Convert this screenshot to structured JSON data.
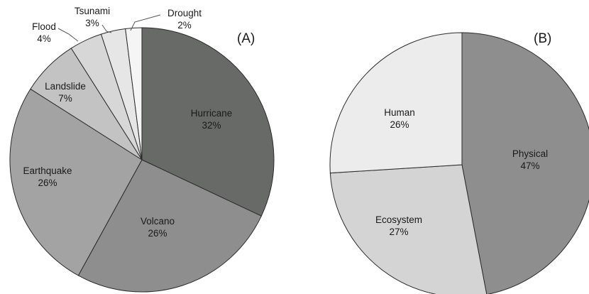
{
  "chart_data": [
    {
      "type": "pie",
      "panel_label": "(A)",
      "slices": [
        {
          "name": "Hurricane",
          "value": 32,
          "label": "32%",
          "color": "#676a67"
        },
        {
          "name": "Volcano",
          "value": 26,
          "label": "26%",
          "color": "#8e8e8e"
        },
        {
          "name": "Earthquake",
          "value": 26,
          "label": "26%",
          "color": "#a3a3a3"
        },
        {
          "name": "Landslide",
          "value": 7,
          "label": "7%",
          "color": "#c3c3c3"
        },
        {
          "name": "Flood",
          "value": 4,
          "label": "4%",
          "color": "#d7d7d7"
        },
        {
          "name": "Tsunami",
          "value": 3,
          "label": "3%",
          "color": "#e6e6e6"
        },
        {
          "name": "Drought",
          "value": 2,
          "label": "2%",
          "color": "#f5f5f5"
        }
      ]
    },
    {
      "type": "pie",
      "panel_label": "(B)",
      "slices": [
        {
          "name": "Physical",
          "value": 47,
          "label": "47%",
          "color": "#8e8e8e"
        },
        {
          "name": "Ecosystem",
          "value": 27,
          "label": "27%",
          "color": "#d4d4d4"
        },
        {
          "name": "Human",
          "value": 26,
          "label": "26%",
          "color": "#ececec"
        }
      ]
    }
  ]
}
